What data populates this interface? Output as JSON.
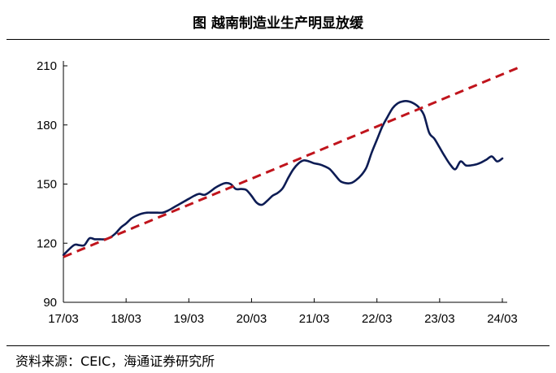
{
  "title": "图  越南制造业生产明显放缓",
  "source": "资料来源：CEIC，海通证券研究所",
  "chart_data": {
    "type": "line",
    "title": "图  越南制造业生产明显放缓",
    "xlabel": "",
    "ylabel": "",
    "x_tick_labels": [
      "17/03",
      "18/03",
      "19/03",
      "20/03",
      "21/03",
      "22/03",
      "23/03",
      "24/03"
    ],
    "y_ticks": [
      90,
      120,
      150,
      180,
      210
    ],
    "ylim": [
      90,
      210
    ],
    "grid": false,
    "legend": "none",
    "series": [
      {
        "color": "#0d1c54",
        "style": "solid",
        "points": [
          [
            0,
            114
          ],
          [
            2,
            119
          ],
          [
            3,
            119
          ],
          [
            4,
            119
          ],
          [
            5,
            122.5
          ],
          [
            6,
            122
          ],
          [
            7,
            122
          ],
          [
            8,
            122
          ],
          [
            9,
            123
          ],
          [
            10,
            125
          ],
          [
            11,
            128
          ],
          [
            12,
            130
          ],
          [
            13,
            132.5
          ],
          [
            14,
            134
          ],
          [
            15,
            135
          ],
          [
            16,
            135.5
          ],
          [
            17,
            135.5
          ],
          [
            18,
            135.5
          ],
          [
            19,
            135.5
          ],
          [
            20,
            136.5
          ],
          [
            21,
            138
          ],
          [
            22,
            139.5
          ],
          [
            23,
            141
          ],
          [
            24,
            142.5
          ],
          [
            25,
            144
          ],
          [
            26,
            145
          ],
          [
            27,
            144.5
          ],
          [
            28,
            146
          ],
          [
            29,
            148
          ],
          [
            30,
            149.5
          ],
          [
            31,
            150.5
          ],
          [
            32,
            150
          ],
          [
            33,
            147.5
          ],
          [
            34,
            147.5
          ],
          [
            35,
            147
          ],
          [
            36,
            144
          ],
          [
            37,
            140.5
          ],
          [
            38,
            139.5
          ],
          [
            39,
            141.5
          ],
          [
            40,
            144
          ],
          [
            41,
            145.5
          ],
          [
            42,
            148
          ],
          [
            43,
            153
          ],
          [
            44,
            157.5
          ],
          [
            45,
            160.5
          ],
          [
            46,
            162
          ],
          [
            47,
            161.5
          ],
          [
            48,
            160.5
          ],
          [
            49,
            160
          ],
          [
            50,
            159
          ],
          [
            51,
            157.5
          ],
          [
            52,
            154.5
          ],
          [
            53,
            151.5
          ],
          [
            54,
            150.5
          ],
          [
            55,
            150.5
          ],
          [
            56,
            152
          ],
          [
            57,
            154.5
          ],
          [
            58,
            158.5
          ],
          [
            59,
            166
          ],
          [
            60,
            172.5
          ],
          [
            61,
            179
          ],
          [
            62,
            184
          ],
          [
            63,
            188.5
          ],
          [
            64,
            191
          ],
          [
            65,
            192
          ],
          [
            66,
            192
          ],
          [
            67,
            191
          ],
          [
            68,
            189
          ],
          [
            69,
            185
          ],
          [
            70,
            176
          ],
          [
            71,
            173
          ],
          [
            72,
            168.5
          ],
          [
            73,
            164
          ],
          [
            74,
            160
          ],
          [
            75,
            157.5
          ],
          [
            76,
            161.5
          ],
          [
            77,
            159.5
          ],
          [
            78,
            159.5
          ],
          [
            79,
            160
          ],
          [
            80,
            161
          ],
          [
            81,
            162.5
          ],
          [
            82,
            164
          ],
          [
            83,
            161.5
          ],
          [
            84,
            163
          ]
        ]
      },
      {
        "color": "#c0141c",
        "style": "dashed",
        "points": [
          [
            0,
            113
          ],
          [
            87,
            209
          ]
        ]
      }
    ]
  }
}
